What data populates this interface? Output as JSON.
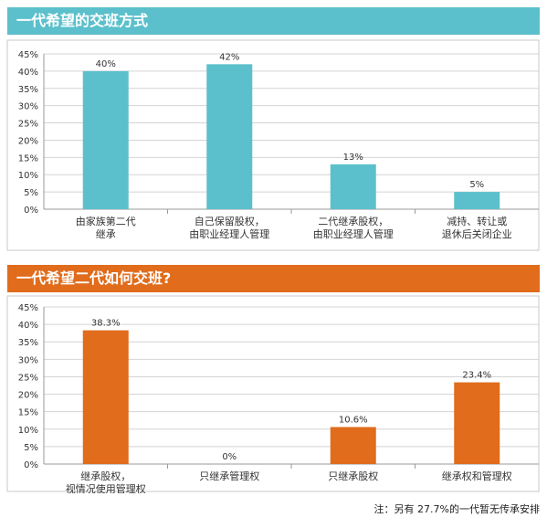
{
  "chart_data": [
    {
      "type": "bar",
      "title": "一代希望的交班方式",
      "header_color": "#5bc0cc",
      "bar_color": "#5bc0cc",
      "ylim": [
        0,
        45
      ],
      "yticks": [
        0,
        5,
        10,
        15,
        20,
        25,
        30,
        35,
        40,
        45
      ],
      "tick_suffix": "%",
      "grid": true,
      "categories": [
        [
          "由家族第二代",
          "继承"
        ],
        [
          "自己保留股权，",
          "由职业经理人管理"
        ],
        [
          "二代继承股权，",
          "由职业经理人管理"
        ],
        [
          "减持、转让或",
          "退休后关闭企业"
        ]
      ],
      "values": [
        40,
        42,
        13,
        5
      ],
      "value_labels": [
        "40%",
        "42%",
        "13%",
        "5%"
      ]
    },
    {
      "type": "bar",
      "title": "一代希望二代如何交班?",
      "header_color": "#e06c1c",
      "bar_color": "#e06c1c",
      "ylim": [
        0,
        45
      ],
      "yticks": [
        0,
        5,
        10,
        15,
        20,
        25,
        30,
        35,
        40,
        45
      ],
      "tick_suffix": "%",
      "grid": true,
      "categories": [
        [
          "继承股权，",
          "视情况使用管理权"
        ],
        [
          "只继承管理权"
        ],
        [
          "只继承股权"
        ],
        [
          "继承权和管理权"
        ]
      ],
      "values": [
        38.3,
        0,
        10.6,
        23.4
      ],
      "value_labels": [
        "38.3%",
        "0%",
        "10.6%",
        "23.4%"
      ]
    }
  ],
  "note": "注：另有 27.7%的一代暂无传承安排"
}
